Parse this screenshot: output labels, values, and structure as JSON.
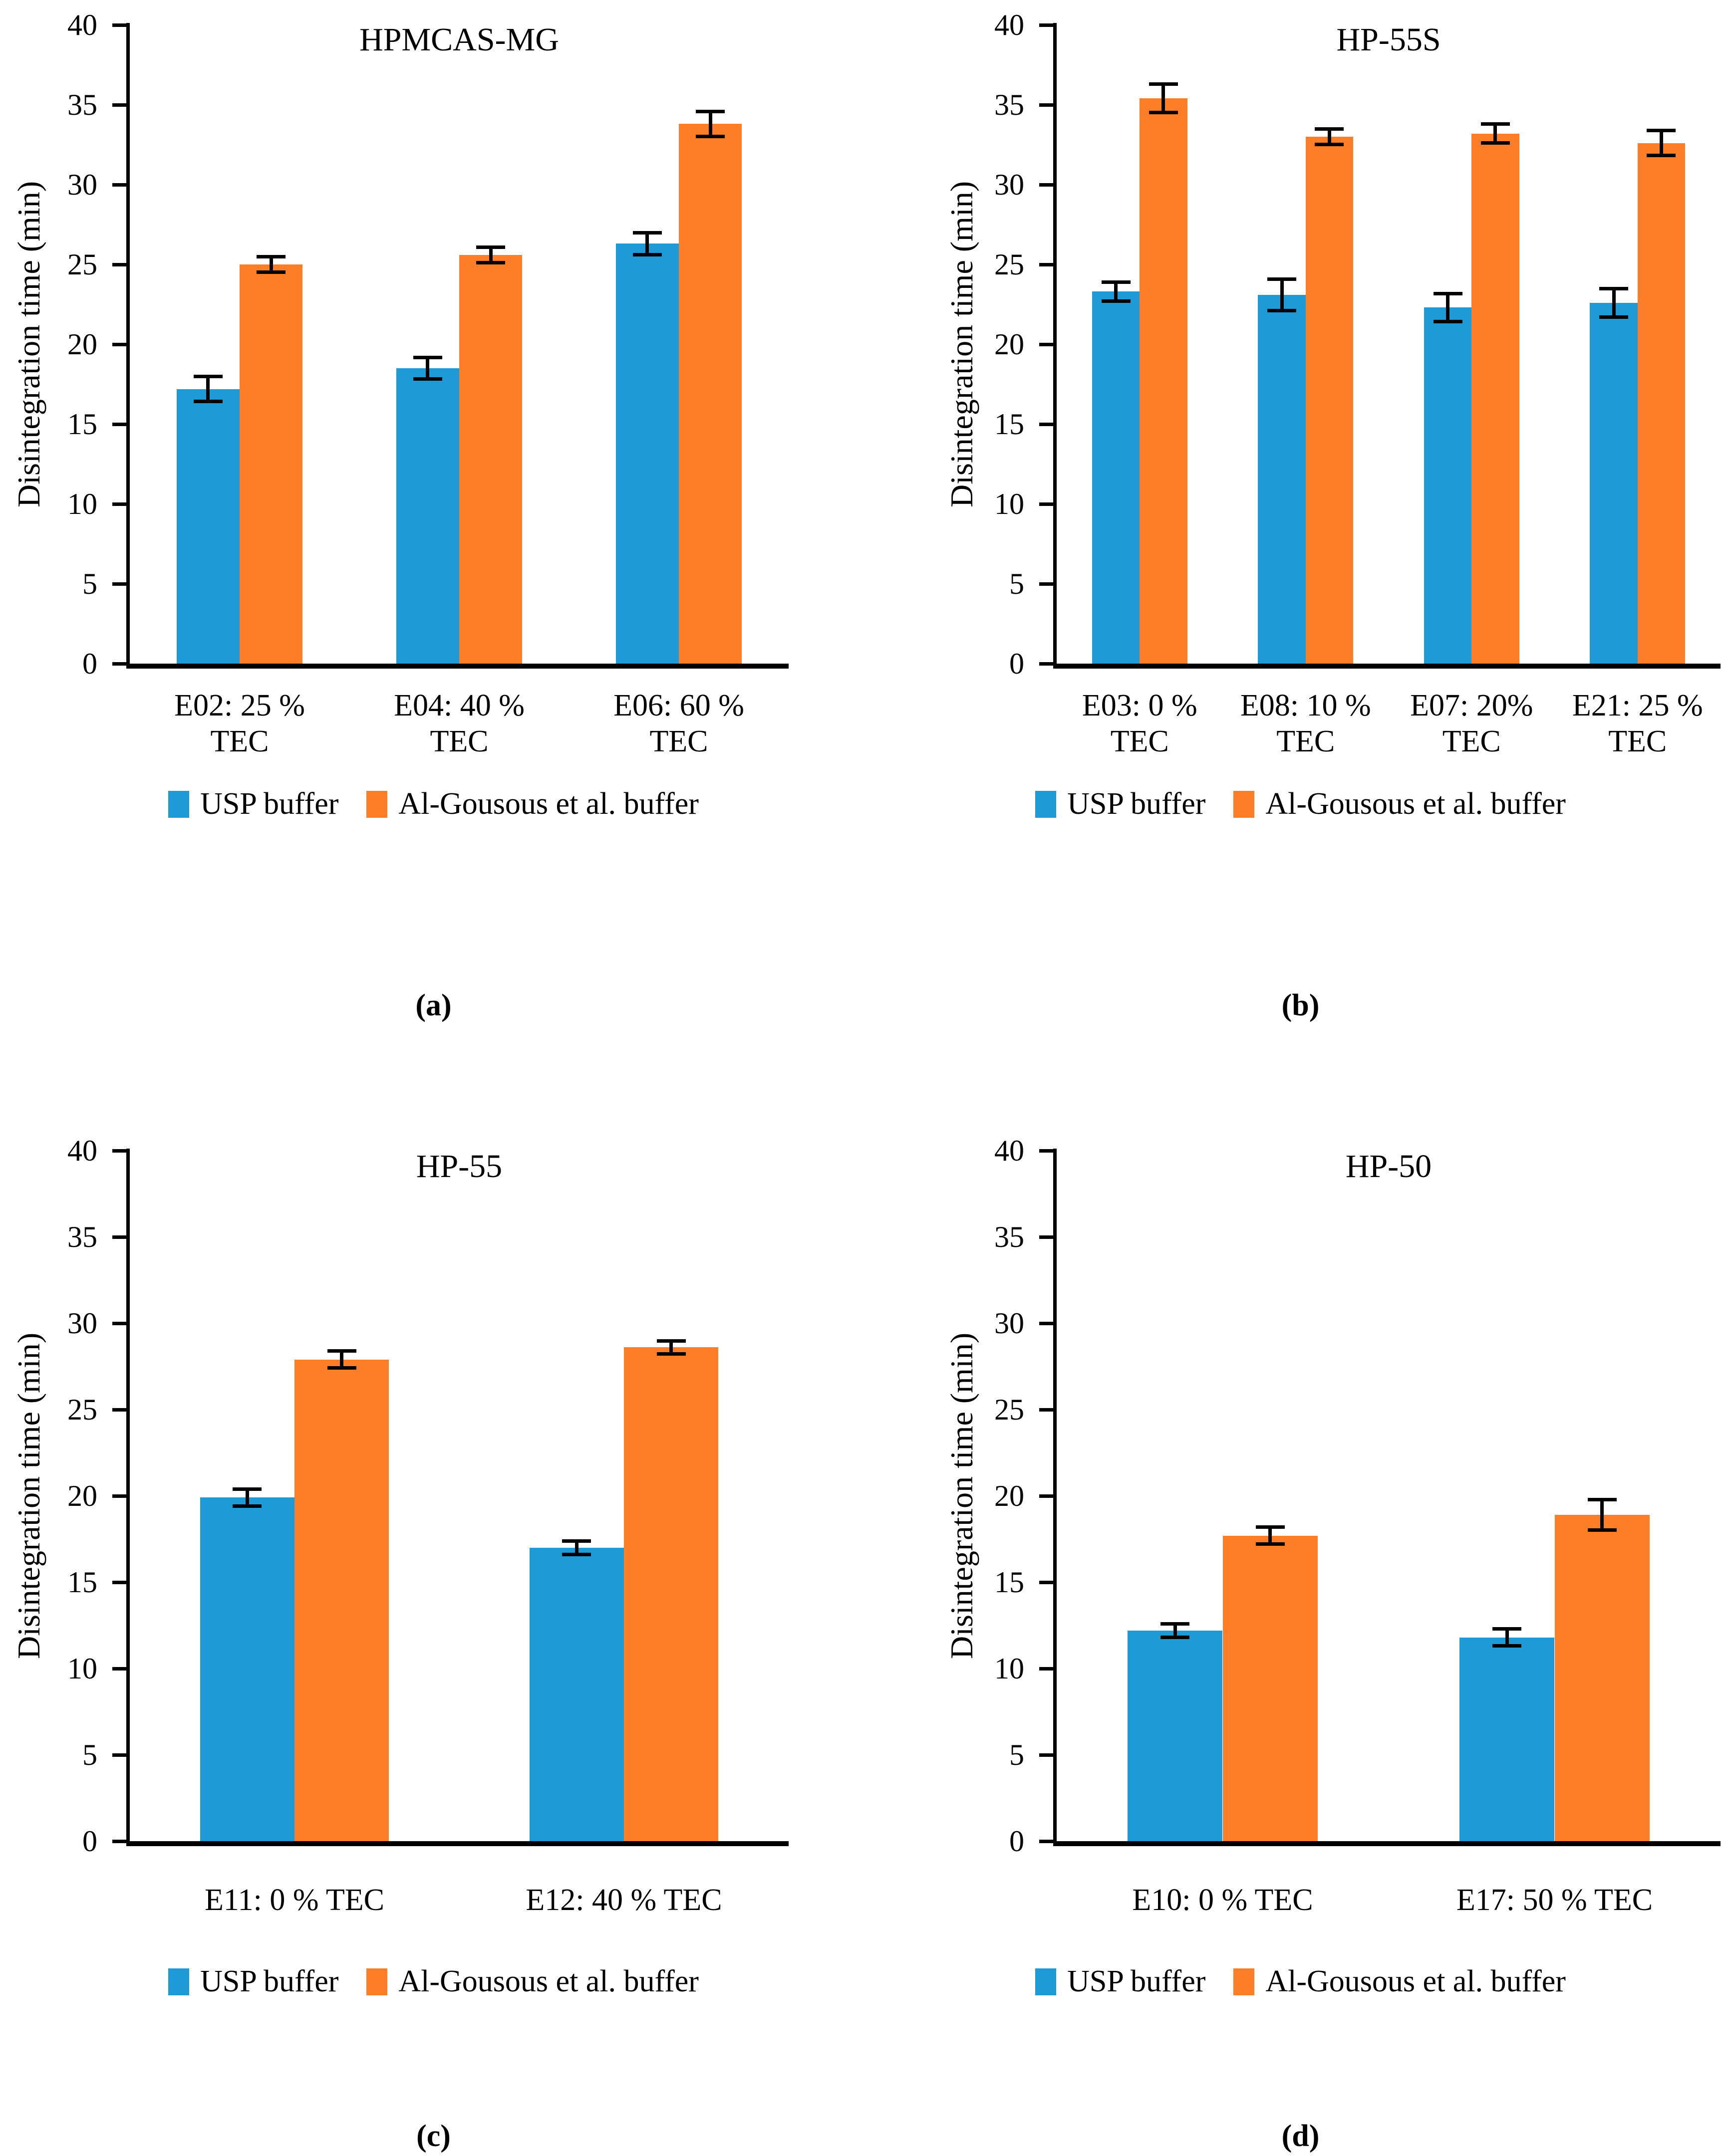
{
  "figure": {
    "ylabel": "Disintegration time (min)",
    "colors": {
      "usp_blue": "#1E9AD6",
      "algousous_orange": "#FD7E27",
      "axis_black": "#000000"
    },
    "legend": [
      {
        "name": "usp-buffer",
        "label": "USP buffer",
        "color": "#1E9AD6"
      },
      {
        "name": "al-gousous-buffer",
        "label": "Al-Gousous et al. buffer",
        "color": "#FD7E27"
      }
    ],
    "y_axis": {
      "min": 0,
      "max": 40,
      "tick_step": 5,
      "ticks": [
        0,
        5,
        10,
        15,
        20,
        25,
        30,
        35,
        40
      ]
    }
  },
  "chart_data": [
    {
      "id": "a",
      "type": "bar",
      "title": "HPMCAS-MG",
      "caption": "(a)",
      "ylabel": "Disintegration time (min)",
      "ylim": [
        0,
        40
      ],
      "ytick_step": 5,
      "grid": false,
      "legend_position": "bottom",
      "categories": [
        [
          "E02: 25 %",
          "TEC"
        ],
        [
          "E04: 40 %",
          "TEC"
        ],
        [
          "E06: 60 %",
          "TEC"
        ]
      ],
      "series": [
        {
          "name": "USP buffer",
          "color": "#1E9AD6",
          "values": [
            17.2,
            18.5,
            26.3
          ],
          "errors": [
            0.8,
            0.7,
            0.7
          ]
        },
        {
          "name": "Al-Gousous et al. buffer",
          "color": "#FD7E27",
          "values": [
            25.0,
            25.6,
            33.8
          ],
          "errors": [
            0.5,
            0.5,
            0.8
          ]
        }
      ]
    },
    {
      "id": "b",
      "type": "bar",
      "title": "HP-55S",
      "caption": "(b)",
      "ylabel": "Disintegration time (min)",
      "ylim": [
        0,
        40
      ],
      "ytick_step": 5,
      "grid": false,
      "legend_position": "bottom",
      "categories": [
        [
          "E03: 0 %",
          "TEC"
        ],
        [
          "E08: 10 %",
          "TEC"
        ],
        [
          "E07:  20%",
          "TEC"
        ],
        [
          "E21: 25 %",
          "TEC"
        ]
      ],
      "series": [
        {
          "name": "USP buffer",
          "color": "#1E9AD6",
          "values": [
            23.3,
            23.1,
            22.3,
            22.6
          ],
          "errors": [
            0.6,
            1.0,
            0.9,
            0.9
          ]
        },
        {
          "name": "Al-Gousous et al. buffer",
          "color": "#FD7E27",
          "values": [
            35.4,
            33.0,
            33.2,
            32.6
          ],
          "errors": [
            0.9,
            0.5,
            0.6,
            0.8
          ]
        }
      ]
    },
    {
      "id": "c",
      "type": "bar",
      "title": "HP-55",
      "caption": "(c)",
      "ylabel": "Disintegration time (min)",
      "ylim": [
        0,
        40
      ],
      "ytick_step": 5,
      "grid": false,
      "legend_position": "bottom",
      "categories": [
        [
          "E11: 0 % TEC"
        ],
        [
          "E12: 40 % TEC"
        ]
      ],
      "series": [
        {
          "name": "USP buffer",
          "color": "#1E9AD6",
          "values": [
            19.9,
            17.0
          ],
          "errors": [
            0.5,
            0.4
          ]
        },
        {
          "name": "Al-Gousous et al. buffer",
          "color": "#FD7E27",
          "values": [
            27.9,
            28.6
          ],
          "errors": [
            0.5,
            0.4
          ]
        }
      ]
    },
    {
      "id": "d",
      "type": "bar",
      "title": "HP-50",
      "caption": "(d)",
      "ylabel": "Disintegration time (min)",
      "ylim": [
        0,
        40
      ],
      "ytick_step": 5,
      "grid": false,
      "legend_position": "bottom",
      "categories": [
        [
          "E10: 0 % TEC"
        ],
        [
          "E17: 50 % TEC"
        ]
      ],
      "series": [
        {
          "name": "USP buffer",
          "color": "#1E9AD6",
          "values": [
            12.2,
            11.8
          ],
          "errors": [
            0.4,
            0.5
          ]
        },
        {
          "name": "Al-Gousous et al. buffer",
          "color": "#FD7E27",
          "values": [
            17.7,
            18.9
          ],
          "errors": [
            0.5,
            0.9
          ]
        }
      ]
    }
  ]
}
